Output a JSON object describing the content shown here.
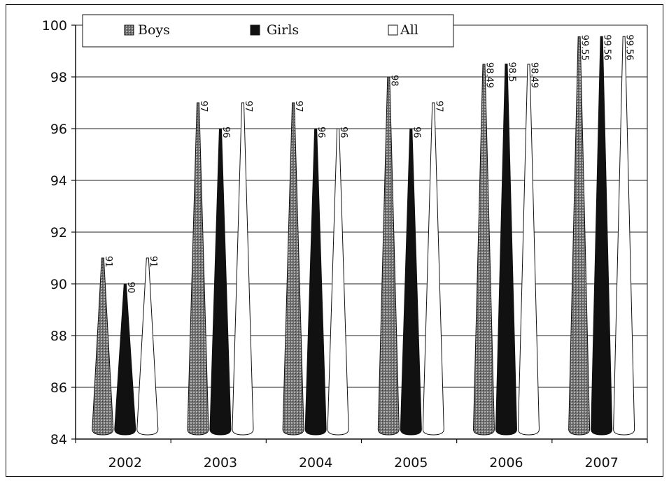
{
  "chart_data": {
    "type": "bar",
    "title": "",
    "xlabel": "",
    "ylabel": "",
    "ylim": [
      84,
      100
    ],
    "yticks": [
      84,
      86,
      88,
      90,
      92,
      94,
      96,
      98,
      100
    ],
    "grid": true,
    "legend": "top",
    "categories": [
      "2002",
      "2003",
      "2004",
      "2005",
      "2006",
      "2007"
    ],
    "series": [
      {
        "name": "Boys",
        "color": "#8a8a8a",
        "values": [
          91,
          97,
          97,
          98,
          98.49,
          99.55
        ],
        "labels": [
          "91",
          "97",
          "97",
          "98",
          "98.49",
          "99.55"
        ]
      },
      {
        "name": "Girls",
        "color": "#111111",
        "values": [
          90,
          96,
          96,
          96,
          98.5,
          99.56
        ],
        "labels": [
          "90",
          "96",
          "96",
          "96",
          "98.5",
          "99.56"
        ]
      },
      {
        "name": "All",
        "color": "#ffffff",
        "values": [
          91,
          97,
          96,
          97,
          98.49,
          99.56
        ],
        "labels": [
          "91",
          "97",
          "96",
          "97",
          "98.49",
          "99.56"
        ]
      }
    ]
  }
}
